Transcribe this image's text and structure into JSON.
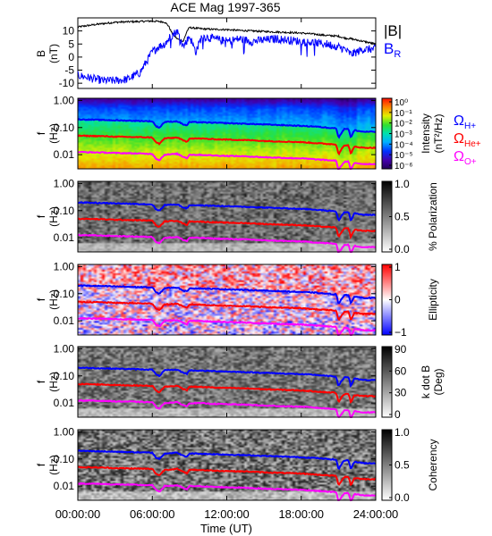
{
  "chart_data": {
    "type": "line",
    "title": "ACE Mag 1997-365",
    "xlabel": "Time (UT)",
    "x_ticks": [
      "00:00:00",
      "06:00:00",
      "12:00:00",
      "18:00:00",
      "24:00:00"
    ],
    "xlim_hours": [
      0,
      24
    ],
    "colors": {
      "b_total": "#000000",
      "b_r": "#0000ff",
      "h_plus": "#0000ff",
      "he_plus": "#ff0000",
      "o_plus": "#ff00ff"
    },
    "field_panel": {
      "ylabel_top": "B",
      "ylabel_bottom": "(nT)",
      "ylim": [
        -12,
        15
      ],
      "y_ticks": [
        "10",
        "5",
        "0",
        "-5",
        "-10"
      ],
      "legend_total": "|B|",
      "legend_radial_main": "B",
      "legend_radial_sub": "R",
      "series": [
        {
          "key": "b_total",
          "x": [
            0,
            1,
            2,
            3,
            4,
            5,
            5.5,
            6,
            6.5,
            7,
            7.3,
            7.6,
            8,
            8.5,
            8.8,
            9,
            10,
            11,
            12,
            13,
            14,
            15,
            16,
            17,
            18,
            19,
            20,
            21,
            21.3,
            21.6,
            22,
            22.5,
            23,
            23.5,
            24
          ],
          "y": [
            11.5,
            12.2,
            12.8,
            13.3,
            13.5,
            13.6,
            13.7,
            13.8,
            13.6,
            13.4,
            12,
            9,
            7,
            6,
            10,
            11.3,
            10.8,
            10.6,
            10.5,
            10.2,
            10,
            9.8,
            9.6,
            9.4,
            9.2,
            8.8,
            8.3,
            8,
            7.5,
            7.2,
            7,
            6.5,
            6,
            5.5,
            5
          ]
        },
        {
          "key": "b_r",
          "x": [
            0,
            1,
            2,
            3,
            4,
            5,
            5.5,
            6,
            6.5,
            7,
            7.5,
            8,
            8.5,
            9,
            9.5,
            10,
            11,
            12,
            13,
            14,
            15,
            16,
            17,
            18,
            19,
            20,
            21,
            21.5,
            22,
            22.5,
            23,
            23.5,
            24
          ],
          "y": [
            -7,
            -8,
            -9,
            -9,
            -8.5,
            -6,
            -2,
            2,
            4,
            5,
            8,
            10,
            4,
            8,
            2,
            8,
            7,
            6,
            7,
            6,
            6.5,
            7,
            6.5,
            6,
            5.5,
            5,
            4,
            3,
            1,
            2,
            3,
            3,
            3
          ]
        }
      ]
    },
    "freq_axis": {
      "ylabel_top": "f",
      "ylabel_bottom": "(Hz)",
      "scale": "log",
      "ylim": [
        0.003,
        1.2
      ],
      "y_ticks": [
        "1.00",
        "0.10",
        "0.01"
      ]
    },
    "gyrofrequency_curves": [
      {
        "key": "h_plus",
        "label_main": "Ω",
        "label_sub": "H+",
        "x": [
          0,
          1,
          2,
          3,
          4,
          5,
          6,
          6.3,
          6.6,
          7,
          7.5,
          8,
          8.5,
          8.8,
          9,
          10,
          11,
          12,
          13,
          14,
          15,
          16,
          17,
          18,
          19,
          20,
          20.8,
          21,
          21.5,
          21.8,
          22,
          22.3,
          22.6,
          23,
          23.5,
          24
        ],
        "y": [
          0.2,
          0.195,
          0.19,
          0.185,
          0.18,
          0.175,
          0.17,
          0.11,
          0.1,
          0.16,
          0.165,
          0.17,
          0.13,
          0.12,
          0.16,
          0.155,
          0.15,
          0.145,
          0.14,
          0.135,
          0.13,
          0.125,
          0.12,
          0.115,
          0.11,
          0.1,
          0.095,
          0.04,
          0.09,
          0.09,
          0.04,
          0.08,
          0.075,
          0.07,
          0.07,
          0.07
        ]
      },
      {
        "key": "he_plus",
        "label_main": "Ω",
        "label_sub": "He+",
        "x": [
          0,
          1,
          2,
          3,
          4,
          5,
          6,
          6.3,
          6.6,
          7,
          7.5,
          8,
          8.5,
          8.8,
          9,
          10,
          11,
          12,
          13,
          14,
          15,
          16,
          17,
          18,
          19,
          20,
          20.8,
          21,
          21.5,
          21.8,
          22,
          22.3,
          22.6,
          23,
          23.5,
          24
        ],
        "y": [
          0.05,
          0.049,
          0.048,
          0.046,
          0.045,
          0.044,
          0.043,
          0.028,
          0.025,
          0.04,
          0.041,
          0.043,
          0.033,
          0.03,
          0.04,
          0.039,
          0.037,
          0.036,
          0.035,
          0.034,
          0.032,
          0.031,
          0.03,
          0.029,
          0.027,
          0.025,
          0.024,
          0.01,
          0.022,
          0.022,
          0.01,
          0.02,
          0.019,
          0.018,
          0.018,
          0.018
        ]
      },
      {
        "key": "o_plus",
        "label_main": "Ω",
        "label_sub": "O+",
        "x": [
          0,
          1,
          2,
          3,
          4,
          5,
          6,
          6.3,
          6.6,
          7,
          7.5,
          8,
          8.5,
          8.8,
          9,
          10,
          11,
          12,
          13,
          14,
          15,
          16,
          17,
          18,
          19,
          20,
          20.8,
          21,
          21.5,
          21.8,
          22,
          22.3,
          22.6,
          23,
          23.5,
          24
        ],
        "y": [
          0.0125,
          0.0122,
          0.012,
          0.0115,
          0.0113,
          0.011,
          0.0107,
          0.007,
          0.0063,
          0.01,
          0.0103,
          0.0107,
          0.0083,
          0.0075,
          0.01,
          0.0098,
          0.0093,
          0.009,
          0.0088,
          0.0085,
          0.008,
          0.0078,
          0.0075,
          0.0073,
          0.0068,
          0.0063,
          0.006,
          0.0025,
          0.0055,
          0.0055,
          0.0025,
          0.005,
          0.0048,
          0.0045,
          0.0045,
          0.0045
        ]
      }
    ],
    "spectrogram_panels": [
      {
        "key": "intensity",
        "scale": "jet",
        "colorbar_label": [
          "Intensity",
          "(nT²/Hz)"
        ],
        "colorbar_ticks": [
          "10⁰",
          "10⁻¹",
          "10⁻²",
          "10⁻³",
          "10⁻⁴",
          "10⁻⁵",
          "10⁻⁶"
        ],
        "zlim_log10": [
          -6.5,
          0
        ],
        "show_species_labels": true
      },
      {
        "key": "polarization",
        "scale": "gray",
        "colorbar_label": [
          "% Polarization"
        ],
        "colorbar_ticks": [
          "1.0",
          "0.5",
          "0.0"
        ],
        "zlim": [
          0,
          1
        ]
      },
      {
        "key": "ellipticity",
        "scale": "bwr",
        "colorbar_label": [
          "Ellipticity"
        ],
        "colorbar_ticks": [
          "1",
          "0",
          "−1"
        ],
        "zlim": [
          -1,
          1
        ]
      },
      {
        "key": "k_dot_b",
        "scale": "gray",
        "colorbar_label": [
          "k dot B",
          "(Deg)"
        ],
        "colorbar_ticks": [
          "90",
          "60",
          "30",
          "0"
        ],
        "zlim": [
          0,
          90
        ]
      },
      {
        "key": "coherency",
        "scale": "gray",
        "colorbar_label": [
          "Coherency"
        ],
        "colorbar_ticks": [
          "1.0",
          "0.5",
          "0.0"
        ],
        "zlim": [
          0,
          1
        ]
      }
    ]
  }
}
